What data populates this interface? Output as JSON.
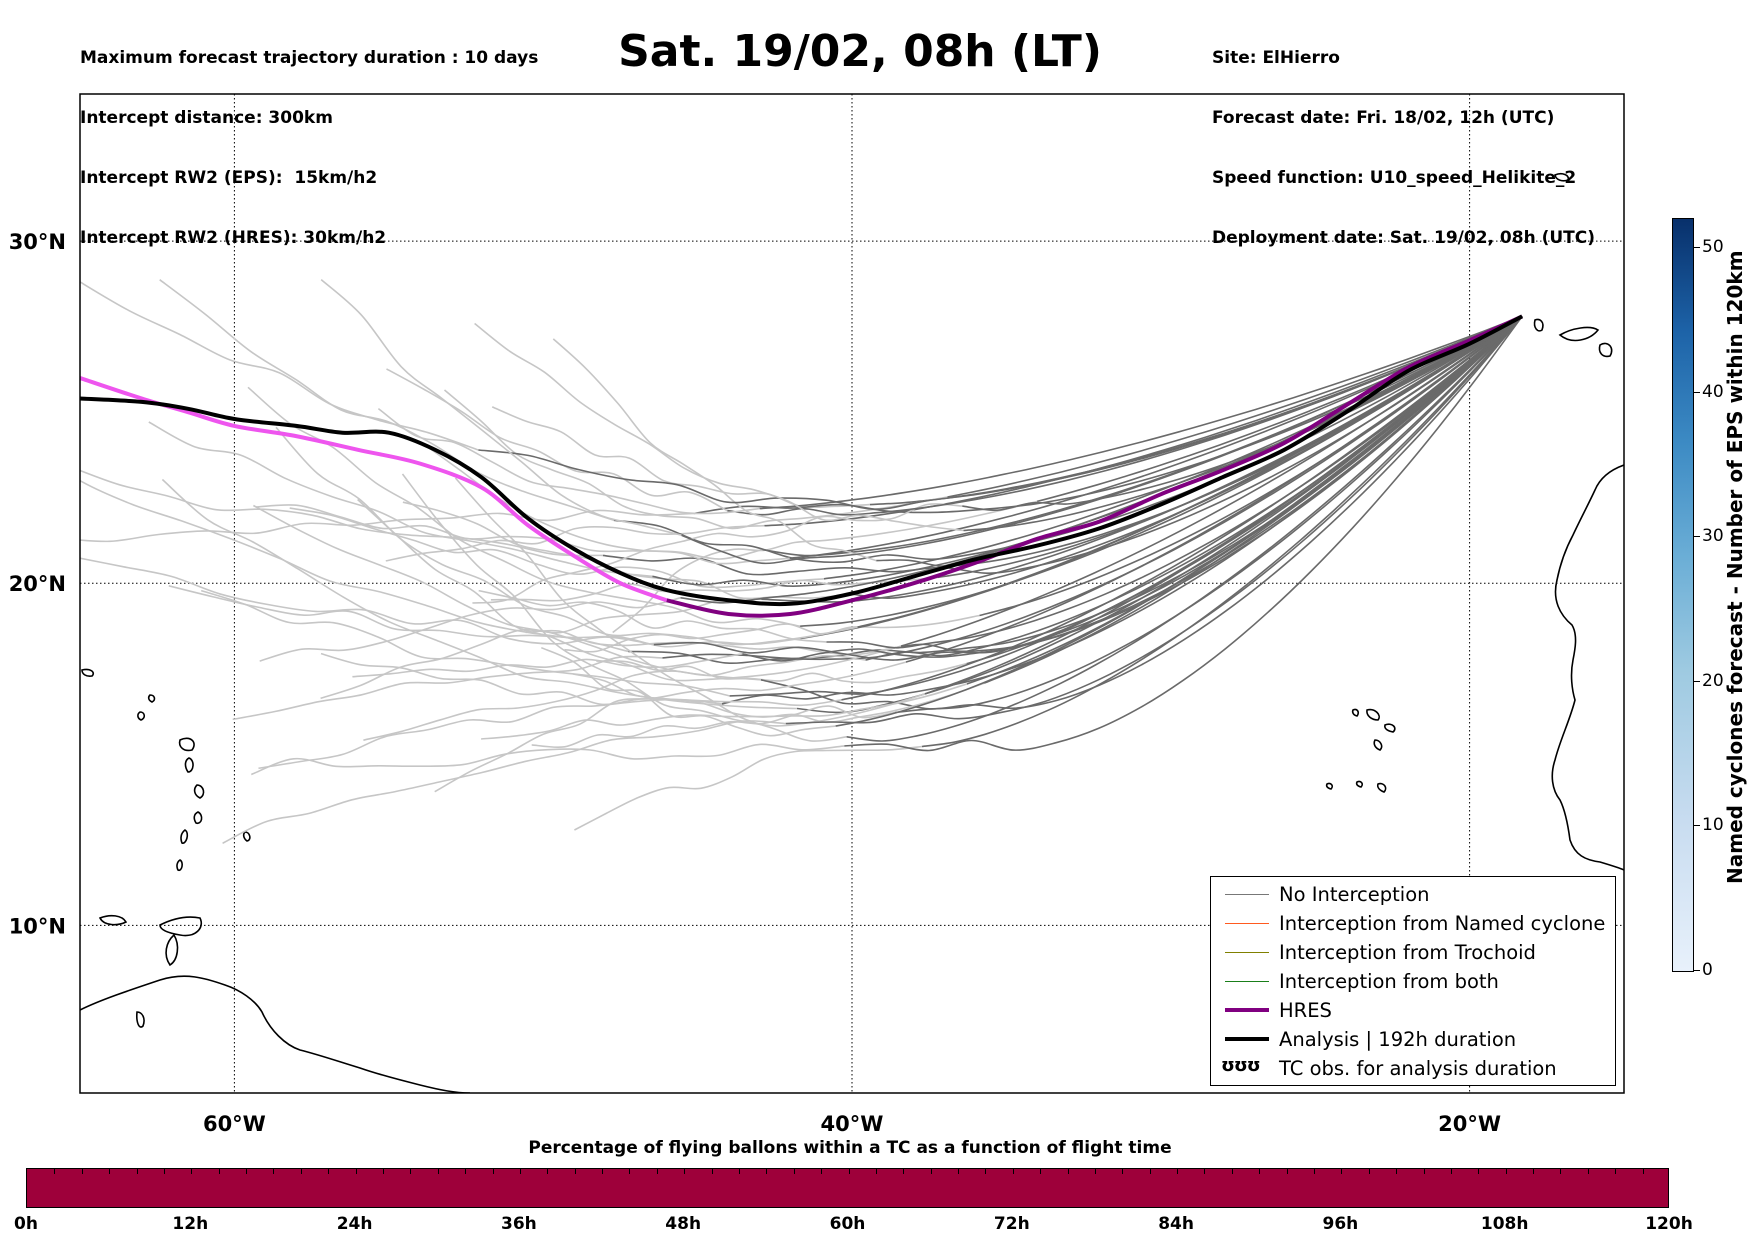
{
  "header": {
    "left_lines": [
      "Maximum forecast trajectory duration : 10 days",
      "Intercept distance: 300km",
      "Intercept RW2 (EPS):  15km/h2",
      "Intercept RW2 (HRES): 30km/h2"
    ],
    "right_lines": [
      "Site: ElHierro",
      "Forecast date: Fri. 18/02, 12h (UTC)",
      "Speed function: U10_speed_Helikite_2",
      "Deployment date: Sat. 19/02, 08h (UTC)"
    ],
    "title": "Sat. 19/02, 08h (LT)"
  },
  "legend": {
    "items": [
      {
        "label": "No Interception",
        "color": "#777777",
        "style": "thin"
      },
      {
        "label": "Interception from Named cyclone",
        "color": "#ff5a1f",
        "style": "thin"
      },
      {
        "label": "Interception from Trochoid",
        "color": "#808000",
        "style": "thin"
      },
      {
        "label": "Interception from both",
        "color": "#1a7f1a",
        "style": "thin"
      },
      {
        "label": "HRES",
        "color": "#800080",
        "style": "thick"
      },
      {
        "label": "Analysis | 192h duration",
        "color": "#000000",
        "style": "thick"
      },
      {
        "label": "TC obs. for analysis duration",
        "color": "#000000",
        "style": "symbol",
        "symbol": "ʊʊʊ"
      }
    ]
  },
  "colorbar": {
    "title": "Named cyclones forecast - Number of EPS within 120km",
    "ticks": [
      "0",
      "10",
      "20",
      "30",
      "40",
      "50"
    ],
    "range": [
      0,
      52
    ]
  },
  "bottom_bar": {
    "title": "Percentage of flying ballons within a TC as a function of flight time",
    "ticks": [
      "0h",
      "12h",
      "24h",
      "36h",
      "48h",
      "60h",
      "72h",
      "84h",
      "96h",
      "108h",
      "120h"
    ],
    "color": "#9e003a"
  },
  "chart_data": {
    "type": "line",
    "x_axis": {
      "label": "",
      "ticks": [
        "60°W",
        "40°W",
        "20°W"
      ],
      "tick_values": [
        -60,
        -40,
        -20
      ],
      "range": [
        -65,
        -15
      ]
    },
    "y_axis": {
      "label": "",
      "ticks": [
        "10°N",
        "20°N",
        "30°N"
      ],
      "tick_values": [
        10,
        20,
        30
      ],
      "range": [
        5.1,
        34.3
      ]
    },
    "grid": "dotted",
    "legend_position": "bottom-right",
    "series": [
      {
        "name": "Analysis | 192h duration",
        "color": "#000000",
        "points": [
          [
            -65,
            25.4
          ],
          [
            -63,
            25.3
          ],
          [
            -61.5,
            25.1
          ],
          [
            -60,
            24.8
          ],
          [
            -58,
            24.6
          ],
          [
            -56.5,
            24.4
          ],
          [
            -55,
            24.4
          ],
          [
            -53.5,
            23.9
          ],
          [
            -52,
            23.1
          ],
          [
            -50.5,
            21.9
          ],
          [
            -49,
            21
          ],
          [
            -47.5,
            20.3
          ],
          [
            -46,
            19.8
          ],
          [
            -44,
            19.5
          ],
          [
            -42,
            19.4
          ],
          [
            -40,
            19.7
          ],
          [
            -38,
            20.2
          ],
          [
            -36,
            20.7
          ],
          [
            -34,
            21.1
          ],
          [
            -32,
            21.6
          ],
          [
            -30,
            22.3
          ],
          [
            -28,
            23.1
          ],
          [
            -26,
            23.9
          ],
          [
            -24,
            25.0
          ],
          [
            -22,
            26.2
          ],
          [
            -20,
            27.0
          ],
          [
            -18.3,
            27.8
          ]
        ]
      },
      {
        "name": "HRES",
        "color": "#800080",
        "color_early": "#ee55ee",
        "points": [
          [
            -65,
            26
          ],
          [
            -63,
            25.4
          ],
          [
            -61.5,
            25.0
          ],
          [
            -60,
            24.6
          ],
          [
            -58,
            24.3
          ],
          [
            -56,
            23.9
          ],
          [
            -54,
            23.5
          ],
          [
            -52,
            22.8
          ],
          [
            -50.5,
            21.7
          ],
          [
            -49,
            20.8
          ],
          [
            -47.5,
            20
          ],
          [
            -46,
            19.5
          ],
          [
            -44,
            19.1
          ],
          [
            -42,
            19.1
          ],
          [
            -40,
            19.5
          ],
          [
            -38,
            20
          ],
          [
            -36,
            20.6
          ],
          [
            -34,
            21.3
          ],
          [
            -32,
            21.8
          ],
          [
            -30,
            22.6
          ],
          [
            -28,
            23.3
          ],
          [
            -26,
            24.1
          ],
          [
            -24,
            25.2
          ],
          [
            -22,
            26.3
          ],
          [
            -20,
            27.1
          ],
          [
            -18.3,
            27.8
          ]
        ]
      }
    ],
    "ensemble_count_approx": 50
  }
}
